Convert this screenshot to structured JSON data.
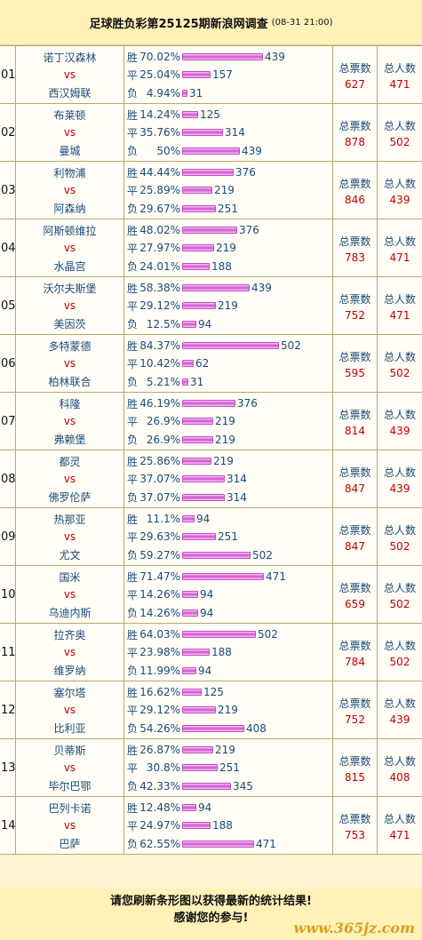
{
  "header": {
    "title": "足球胜负彩第25125期新浪网调查",
    "date": "(08-31 21:00)"
  },
  "labels": {
    "vs": "vs",
    "win": "胜",
    "draw": "平",
    "loss": "负",
    "total_votes": "总票数",
    "total_people": "总人数"
  },
  "matches": [
    {
      "num": "01",
      "home": "诺丁汉森林",
      "away": "西汉姆联",
      "win_pct": "70.02%",
      "win_cnt": 439,
      "draw_pct": "25.04%",
      "draw_cnt": 157,
      "loss_pct": "4.94%",
      "loss_cnt": 31,
      "total_votes": 627,
      "total_people": 471
    },
    {
      "num": "02",
      "home": "布莱顿",
      "away": "曼城",
      "win_pct": "14.24%",
      "win_cnt": 125,
      "draw_pct": "35.76%",
      "draw_cnt": 314,
      "loss_pct": "50%",
      "loss_cnt": 439,
      "total_votes": 878,
      "total_people": 502
    },
    {
      "num": "03",
      "home": "利物浦",
      "away": "阿森纳",
      "win_pct": "44.44%",
      "win_cnt": 376,
      "draw_pct": "25.89%",
      "draw_cnt": 219,
      "loss_pct": "29.67%",
      "loss_cnt": 251,
      "total_votes": 846,
      "total_people": 439
    },
    {
      "num": "04",
      "home": "阿斯顿维拉",
      "away": "水晶宫",
      "win_pct": "48.02%",
      "win_cnt": 376,
      "draw_pct": "27.97%",
      "draw_cnt": 219,
      "loss_pct": "24.01%",
      "loss_cnt": 188,
      "total_votes": 783,
      "total_people": 471
    },
    {
      "num": "05",
      "home": "沃尔夫斯堡",
      "away": "美因茨",
      "win_pct": "58.38%",
      "win_cnt": 439,
      "draw_pct": "29.12%",
      "draw_cnt": 219,
      "loss_pct": "12.5%",
      "loss_cnt": 94,
      "total_votes": 752,
      "total_people": 471
    },
    {
      "num": "06",
      "home": "多特蒙德",
      "away": "柏林联合",
      "win_pct": "84.37%",
      "win_cnt": 502,
      "draw_pct": "10.42%",
      "draw_cnt": 62,
      "loss_pct": "5.21%",
      "loss_cnt": 31,
      "total_votes": 595,
      "total_people": 502
    },
    {
      "num": "07",
      "home": "科隆",
      "away": "弗赖堡",
      "win_pct": "46.19%",
      "win_cnt": 376,
      "draw_pct": "26.9%",
      "draw_cnt": 219,
      "loss_pct": "26.9%",
      "loss_cnt": 219,
      "total_votes": 814,
      "total_people": 439
    },
    {
      "num": "08",
      "home": "都灵",
      "away": "佛罗伦萨",
      "win_pct": "25.86%",
      "win_cnt": 219,
      "draw_pct": "37.07%",
      "draw_cnt": 314,
      "loss_pct": "37.07%",
      "loss_cnt": 314,
      "total_votes": 847,
      "total_people": 439
    },
    {
      "num": "09",
      "home": "热那亚",
      "away": "尤文",
      "win_pct": "11.1%",
      "win_cnt": 94,
      "draw_pct": "29.63%",
      "draw_cnt": 251,
      "loss_pct": "59.27%",
      "loss_cnt": 502,
      "total_votes": 847,
      "total_people": 502
    },
    {
      "num": "10",
      "home": "国米",
      "away": "乌迪内斯",
      "win_pct": "71.47%",
      "win_cnt": 471,
      "draw_pct": "14.26%",
      "draw_cnt": 94,
      "loss_pct": "14.26%",
      "loss_cnt": 94,
      "total_votes": 659,
      "total_people": 502
    },
    {
      "num": "11",
      "home": "拉齐奥",
      "away": "维罗纳",
      "win_pct": "64.03%",
      "win_cnt": 502,
      "draw_pct": "23.98%",
      "draw_cnt": 188,
      "loss_pct": "11.99%",
      "loss_cnt": 94,
      "total_votes": 784,
      "total_people": 502
    },
    {
      "num": "12",
      "home": "塞尔塔",
      "away": "比利亚",
      "win_pct": "16.62%",
      "win_cnt": 125,
      "draw_pct": "29.12%",
      "draw_cnt": 219,
      "loss_pct": "54.26%",
      "loss_cnt": 408,
      "total_votes": 752,
      "total_people": 439
    },
    {
      "num": "13",
      "home": "贝蒂斯",
      "away": "毕尔巴鄂",
      "win_pct": "26.87%",
      "win_cnt": 219,
      "draw_pct": "30.8%",
      "draw_cnt": 251,
      "loss_pct": "42.33%",
      "loss_cnt": 345,
      "total_votes": 815,
      "total_people": 408
    },
    {
      "num": "14",
      "home": "巴列卡诺",
      "away": "巴萨",
      "win_pct": "12.48%",
      "win_cnt": 94,
      "draw_pct": "24.97%",
      "draw_cnt": 188,
      "loss_pct": "62.55%",
      "loss_cnt": 471,
      "total_votes": 753,
      "total_people": 471
    }
  ],
  "footer": {
    "line1": "请您刷新条形图以获得最新的统计结果!",
    "line2": "感谢您的参与!",
    "watermark": "www.365jz.com"
  },
  "colors": {
    "bar": "#D24CD2",
    "accent_red": "#C00000",
    "text_blue": "#1A4A7A",
    "background": "#FFF6CF"
  }
}
